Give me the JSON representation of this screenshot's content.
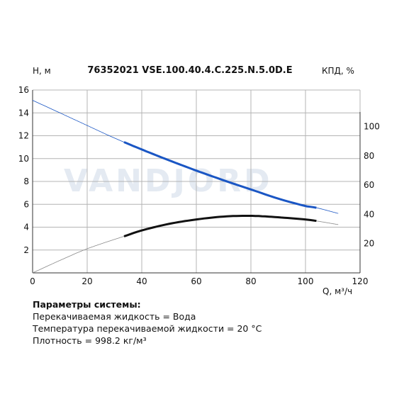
{
  "chart_data": {
    "type": "line",
    "title": "76352021 VSE.100.40.4.C.225.N.5.0D.E",
    "ylabel": "H, м",
    "y2label": "КПД, %",
    "xlabel": "Q, м³/ч",
    "watermark": "VANDJORD",
    "grid": true,
    "xlim": [
      0,
      120
    ],
    "ylim": [
      0,
      16
    ],
    "y2lim": [
      0,
      125
    ],
    "x_ticks": [
      "0",
      "20",
      "40",
      "60",
      "80",
      "100",
      "120"
    ],
    "y_ticks": [
      "2",
      "4",
      "6",
      "8",
      "10",
      "12",
      "14",
      "16"
    ],
    "y2_ticks": [
      "20",
      "40",
      "60",
      "80",
      "100"
    ],
    "series": [
      {
        "axis": "left",
        "color": "#1a56c4",
        "operating_range": [
          33.5,
          104
        ],
        "x": [
          0,
          10,
          20,
          30,
          40,
          50,
          60,
          70,
          80,
          90,
          100,
          104,
          112
        ],
        "y": [
          15.1,
          14.0,
          12.9,
          11.8,
          10.8,
          9.85,
          8.95,
          8.1,
          7.3,
          6.5,
          5.85,
          5.7,
          5.2
        ]
      },
      {
        "axis": "right",
        "color": "#111111",
        "operating_range": [
          33.5,
          104
        ],
        "x": [
          0,
          10,
          20,
          33.5,
          40,
          50,
          60,
          70,
          80,
          90,
          100,
          104,
          112
        ],
        "y": [
          0,
          8.5,
          16.5,
          25,
          29,
          33.5,
          36.5,
          38.5,
          39,
          38,
          36.5,
          35.5,
          33
        ]
      }
    ]
  },
  "params": {
    "heading": "Параметры системы:",
    "lines": [
      "Перекачиваемая жидкость = Вода",
      "Температура перекачиваемой жидкости = 20 °C",
      "Плотность = 998.2 кг/м³"
    ]
  }
}
